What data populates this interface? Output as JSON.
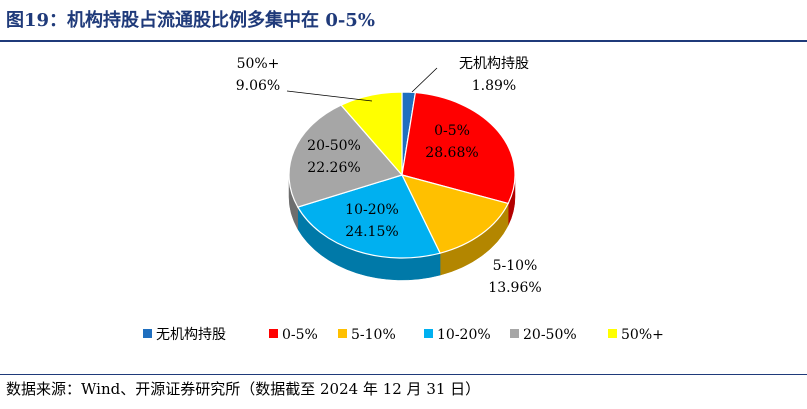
{
  "title": "图19：机构持股占流通股比例多集中在 0-5%",
  "source": "数据来源：Wind、开源证券研究所（数据截至 2024 年 12 月 31 日）",
  "chart_data": {
    "type": "pie",
    "title": "",
    "legend_position": "bottom",
    "categories": [
      "无机构持股",
      "0-5%",
      "5-10%",
      "10-20%",
      "20-50%",
      "50%+"
    ],
    "values": [
      1.89,
      28.68,
      13.96,
      24.15,
      22.26,
      9.06
    ],
    "value_labels": [
      "1.89%",
      "28.68%",
      "13.96%",
      "24.15%",
      "22.26%",
      "9.06%"
    ],
    "colors": [
      "#1f6fbf",
      "#ff0000",
      "#ffc000",
      "#00b0f0",
      "#a6a6a6",
      "#ffff00"
    ],
    "side_colors": [
      "#174f8a",
      "#b30000",
      "#b38600",
      "#0079a8",
      "#6e6e6e",
      "#b3b300"
    ]
  }
}
